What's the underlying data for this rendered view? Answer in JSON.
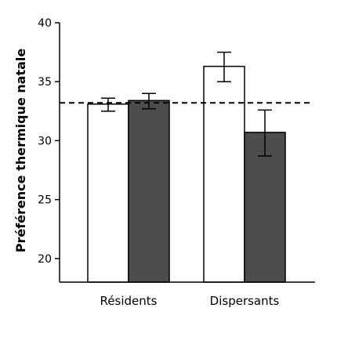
{
  "chart_data": {
    "type": "bar",
    "title": "",
    "xlabel": "",
    "ylabel": "Préférence thermique natale",
    "categories": [
      "Résidents",
      "Dispersants"
    ],
    "series": [
      {
        "values": [
          33.1,
          36.3
        ],
        "error_low": [
          32.5,
          35.0
        ],
        "error_high": [
          33.6,
          37.5
        ],
        "fill": "#ffffff"
      },
      {
        "values": [
          33.4,
          30.7
        ],
        "error_low": [
          32.7,
          28.7
        ],
        "error_high": [
          34.0,
          32.6
        ],
        "fill": "#4d4d4d"
      }
    ],
    "reference_line": {
      "y": 33.2,
      "style": "dashed"
    },
    "ylim": [
      18,
      40
    ],
    "yticks": [
      "20",
      "25",
      "30",
      "35",
      "40"
    ],
    "grid": false,
    "legend": "none"
  }
}
